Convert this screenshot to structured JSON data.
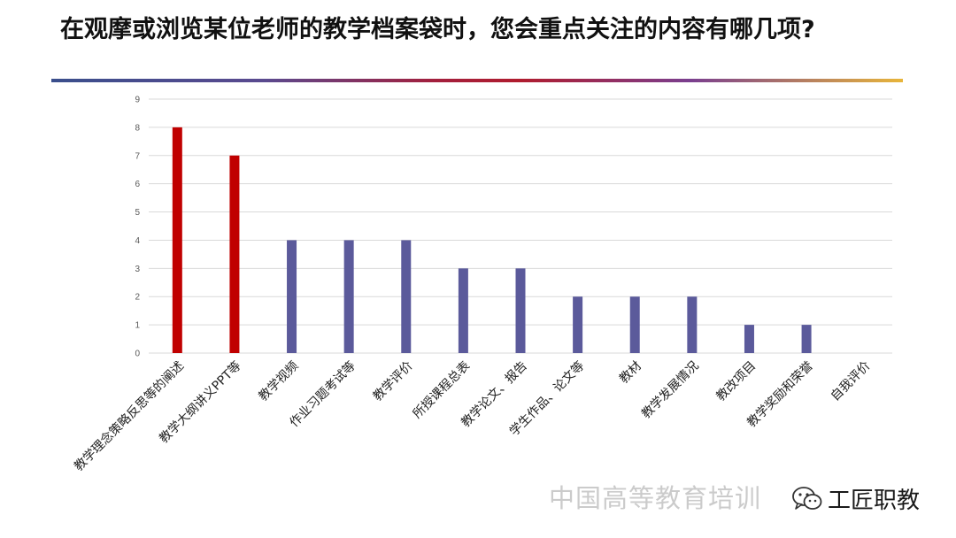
{
  "slide": {
    "title": "在观摩或浏览某位老师的教学档案袋时，您会重点关注的内容有哪几项?"
  },
  "watermark": {
    "text": "中国高等教育培训",
    "badge_text": "工匠职教",
    "icon": "wechat-icon"
  },
  "colors": {
    "highlight": "#c00000",
    "normal": "#5b5a9b",
    "grid": "#d9d9d9"
  },
  "chart_data": {
    "type": "bar",
    "title": "",
    "xlabel": "",
    "ylabel": "",
    "ylim": [
      0,
      9
    ],
    "yticks": [
      0,
      1,
      2,
      3,
      4,
      5,
      6,
      7,
      8,
      9
    ],
    "grid": true,
    "legend": "none",
    "categories": [
      "教学理念策略反思等的阐述",
      "教学大纲讲义PPT等",
      "教学视频",
      "作业习题考试等",
      "教学评价",
      "所授课程总表",
      "教学论文、报告",
      "学生作品、论文等",
      "教材",
      "教学发展情况",
      "教改项目",
      "教学奖励和荣誉",
      "自我评价"
    ],
    "values": [
      8,
      7,
      4,
      4,
      4,
      3,
      3,
      2,
      2,
      2,
      1,
      1,
      0
    ],
    "highlighted": [
      true,
      true,
      false,
      false,
      false,
      false,
      false,
      false,
      false,
      false,
      false,
      false,
      false
    ]
  }
}
